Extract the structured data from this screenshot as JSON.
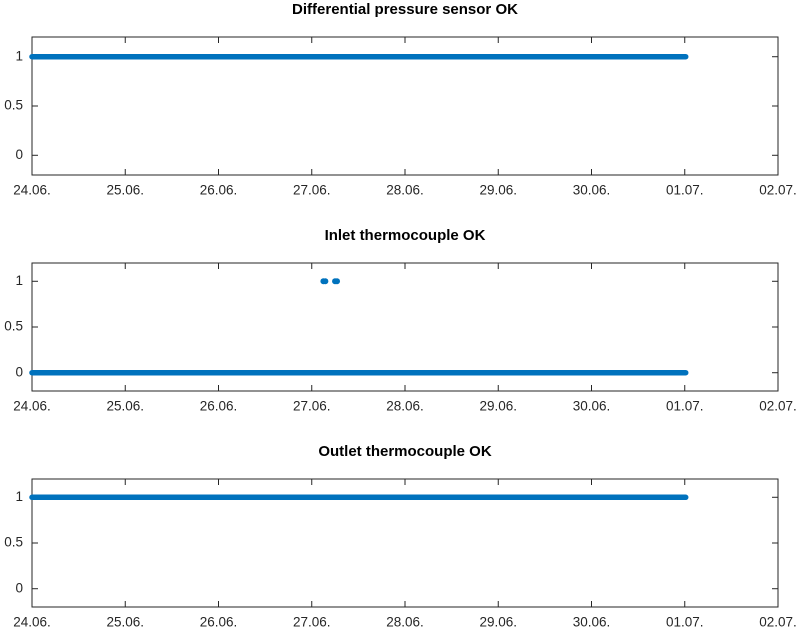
{
  "figure": {
    "background": "#ffffff"
  },
  "chart_data": [
    {
      "type": "scatter",
      "title": "Differential pressure sensor OK",
      "xlabel": "",
      "ylabel": "",
      "x_ticks": [
        "24.06.",
        "25.06.",
        "26.06.",
        "27.06.",
        "28.06.",
        "29.06.",
        "30.06.",
        "01.07.",
        "02.07."
      ],
      "xlim": [
        "24.06.",
        "02.07."
      ],
      "y_ticks": [
        "0",
        "0.5",
        "1"
      ],
      "ylim": [
        -0.2,
        1.2
      ],
      "grid": false,
      "series": [
        {
          "color": "#0072bd",
          "marker": "dot",
          "segments": [
            {
              "x_start": "24.06. 00:00",
              "x_end": "01.07. 00:15",
              "y": 1
            }
          ]
        }
      ]
    },
    {
      "type": "scatter",
      "title": "Inlet thermocouple OK",
      "xlabel": "",
      "ylabel": "",
      "x_ticks": [
        "24.06.",
        "25.06.",
        "26.06.",
        "27.06.",
        "28.06.",
        "29.06.",
        "30.06.",
        "01.07.",
        "02.07."
      ],
      "xlim": [
        "24.06.",
        "02.07."
      ],
      "y_ticks": [
        "0",
        "0.5",
        "1"
      ],
      "ylim": [
        -0.2,
        1.2
      ],
      "grid": false,
      "series": [
        {
          "color": "#0072bd",
          "marker": "dot",
          "segments": [
            {
              "x_start": "24.06. 00:00",
              "x_end": "01.07. 00:15",
              "y": 0
            }
          ],
          "points": [
            {
              "x": "27.06. 03:00",
              "y": 1
            },
            {
              "x": "27.06. 03:30",
              "y": 1
            },
            {
              "x": "27.06. 06:00",
              "y": 1
            },
            {
              "x": "27.06. 06:30",
              "y": 1
            }
          ]
        }
      ]
    },
    {
      "type": "scatter",
      "title": "Outlet thermocouple OK",
      "xlabel": "",
      "ylabel": "",
      "x_ticks": [
        "24.06.",
        "25.06.",
        "26.06.",
        "27.06.",
        "28.06.",
        "29.06.",
        "30.06.",
        "01.07.",
        "02.07."
      ],
      "xlim": [
        "24.06.",
        "02.07."
      ],
      "y_ticks": [
        "0",
        "0.5",
        "1"
      ],
      "ylim": [
        -0.2,
        1.2
      ],
      "grid": false,
      "series": [
        {
          "color": "#0072bd",
          "marker": "dot",
          "segments": [
            {
              "x_start": "24.06. 00:00",
              "x_end": "01.07. 00:15",
              "y": 1
            }
          ]
        }
      ]
    }
  ]
}
